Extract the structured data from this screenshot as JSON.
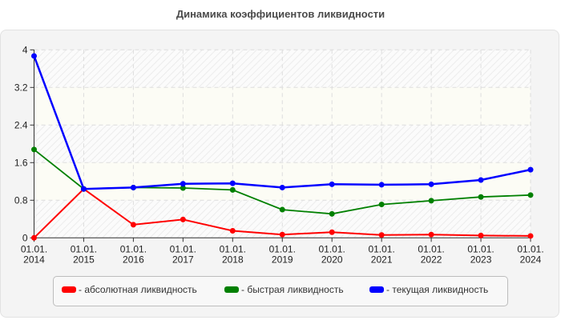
{
  "title": "Динамика коэффициентов ликвидности",
  "legend": [
    {
      "label": "- абсолютная ликвидность",
      "color": "#ff0000"
    },
    {
      "label": "- быстрая ликвидность",
      "color": "#008000"
    },
    {
      "label": "- текущая ликвидность",
      "color": "#0000ff"
    }
  ],
  "chart_data": {
    "type": "line",
    "title": "Динамика коэффициентов ликвидности",
    "xlabel": "",
    "ylabel": "",
    "categories": [
      "01.01.\n2014",
      "01.01.\n2015",
      "01.01.\n2016",
      "01.01.\n2017",
      "01.01.\n2018",
      "01.01.\n2019",
      "01.01.\n2020",
      "01.01.\n2021",
      "01.01.\n2022",
      "01.01.\n2023",
      "01.01.\n2024"
    ],
    "x_tick_lines": [
      [
        "01.01.",
        "2014"
      ],
      [
        "01.01.",
        "2015"
      ],
      [
        "01.01.",
        "2016"
      ],
      [
        "01.01.",
        "2017"
      ],
      [
        "01.01.",
        "2018"
      ],
      [
        "01.01.",
        "2019"
      ],
      [
        "01.01.",
        "2020"
      ],
      [
        "01.01.",
        "2021"
      ],
      [
        "01.01.",
        "2022"
      ],
      [
        "01.01.",
        "2023"
      ],
      [
        "01.01.",
        "2024"
      ]
    ],
    "yticks": [
      0,
      0.8,
      1.6,
      2.4,
      3.2,
      4
    ],
    "ytick_labels": [
      "0",
      "0.8",
      "1.6",
      "2.4",
      "3.2",
      "4"
    ],
    "ylim": [
      0,
      4
    ],
    "grid": true,
    "legend_position": "bottom",
    "series": [
      {
        "name": "абсолютная ликвидность",
        "color": "#ff0000",
        "values": [
          0.0,
          1.04,
          0.28,
          0.39,
          0.15,
          0.07,
          0.12,
          0.06,
          0.07,
          0.05,
          0.04
        ]
      },
      {
        "name": "быстрая ликвидность",
        "color": "#008000",
        "values": [
          1.88,
          1.04,
          1.07,
          1.06,
          1.02,
          0.6,
          0.51,
          0.71,
          0.79,
          0.87,
          0.91
        ]
      },
      {
        "name": "текущая ликвидность",
        "color": "#0000ff",
        "values": [
          3.87,
          1.04,
          1.07,
          1.15,
          1.16,
          1.07,
          1.14,
          1.13,
          1.14,
          1.23,
          1.45
        ]
      }
    ]
  }
}
